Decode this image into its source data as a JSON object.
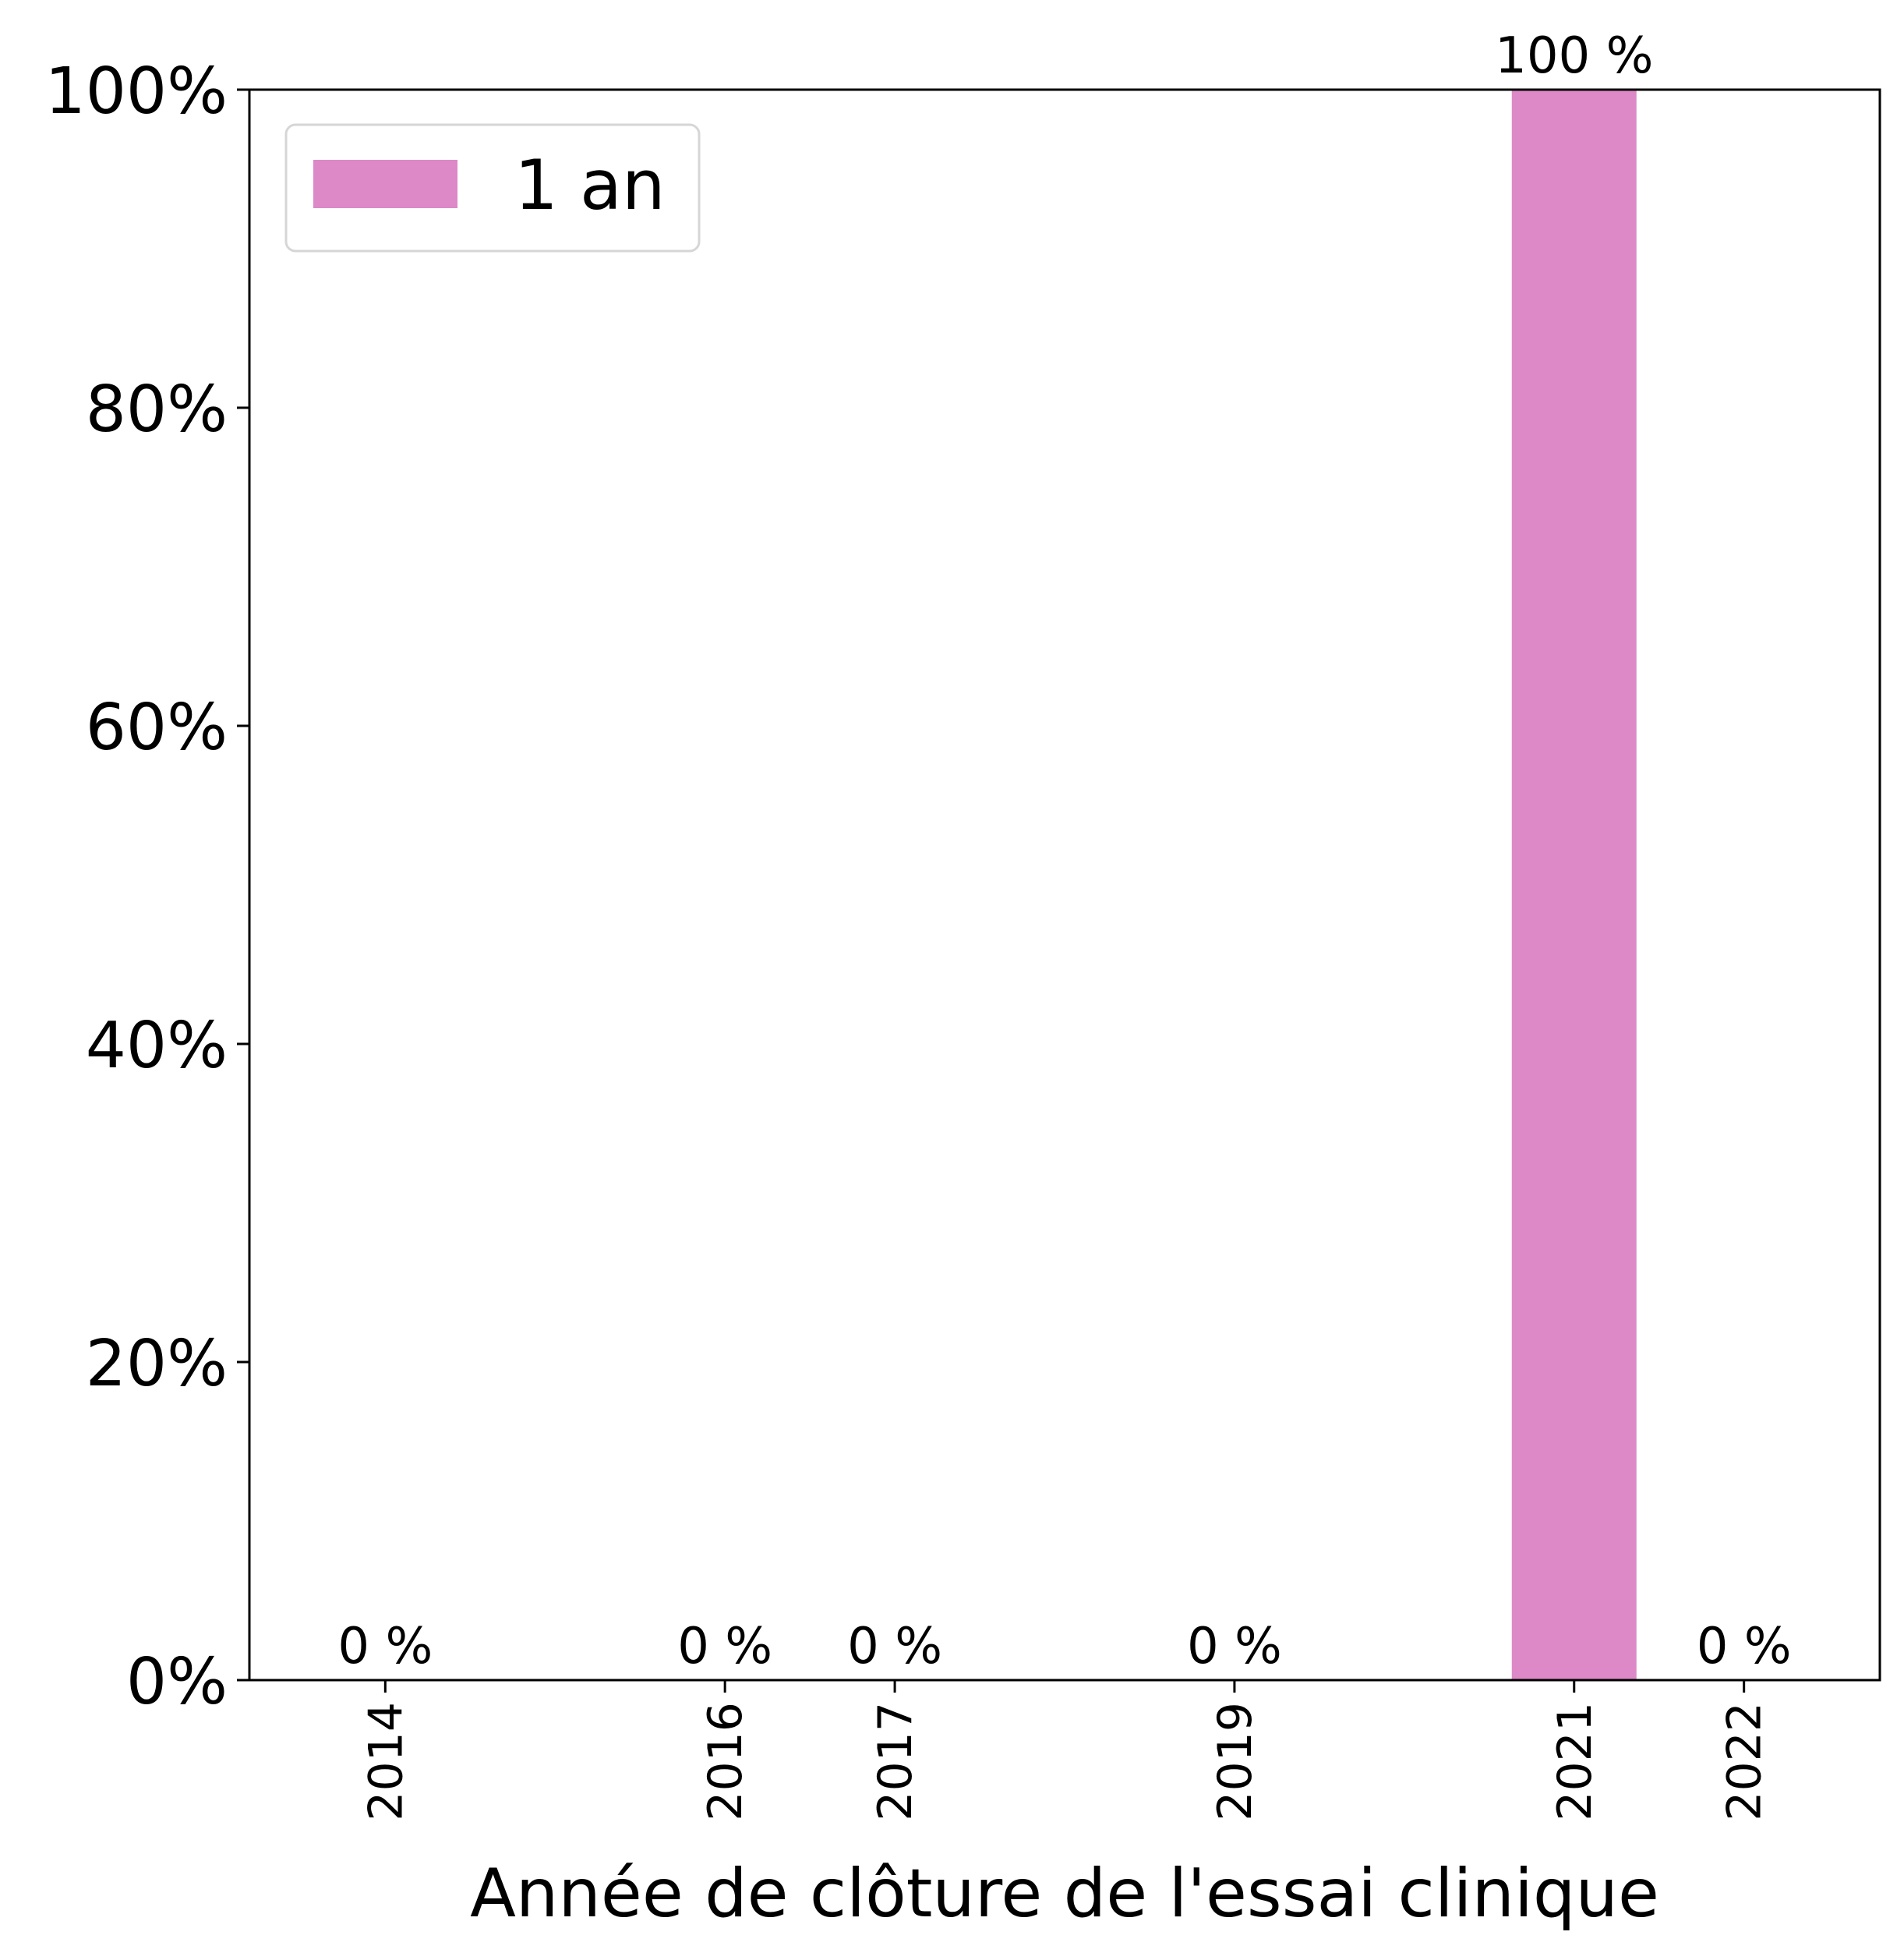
{
  "chart_data": {
    "type": "bar",
    "categories": [
      "2014",
      "2016",
      "2017",
      "2019",
      "2021",
      "2022"
    ],
    "x": [
      2014,
      2016,
      2017,
      2019,
      2021,
      2022
    ],
    "series": [
      {
        "name": "1 an",
        "color": "#dd88c7",
        "values": [
          0,
          0,
          0,
          0,
          100,
          0
        ],
        "labels": [
          "0 %",
          "0 %",
          "0 %",
          "0 %",
          "100 %",
          "0 %"
        ]
      }
    ],
    "xlabel": "Année de clôture de l'essai clinique",
    "ylabel": "",
    "ylim": [
      0,
      100
    ],
    "xlim": [
      2013.2,
      2022.8
    ],
    "yticks": [
      0,
      20,
      40,
      60,
      80,
      100
    ],
    "ytick_labels": [
      "0%",
      "20%",
      "40%",
      "60%",
      "80%",
      "100%"
    ],
    "bar_width": 0.75,
    "grid": false,
    "legend_position": "top-left"
  }
}
